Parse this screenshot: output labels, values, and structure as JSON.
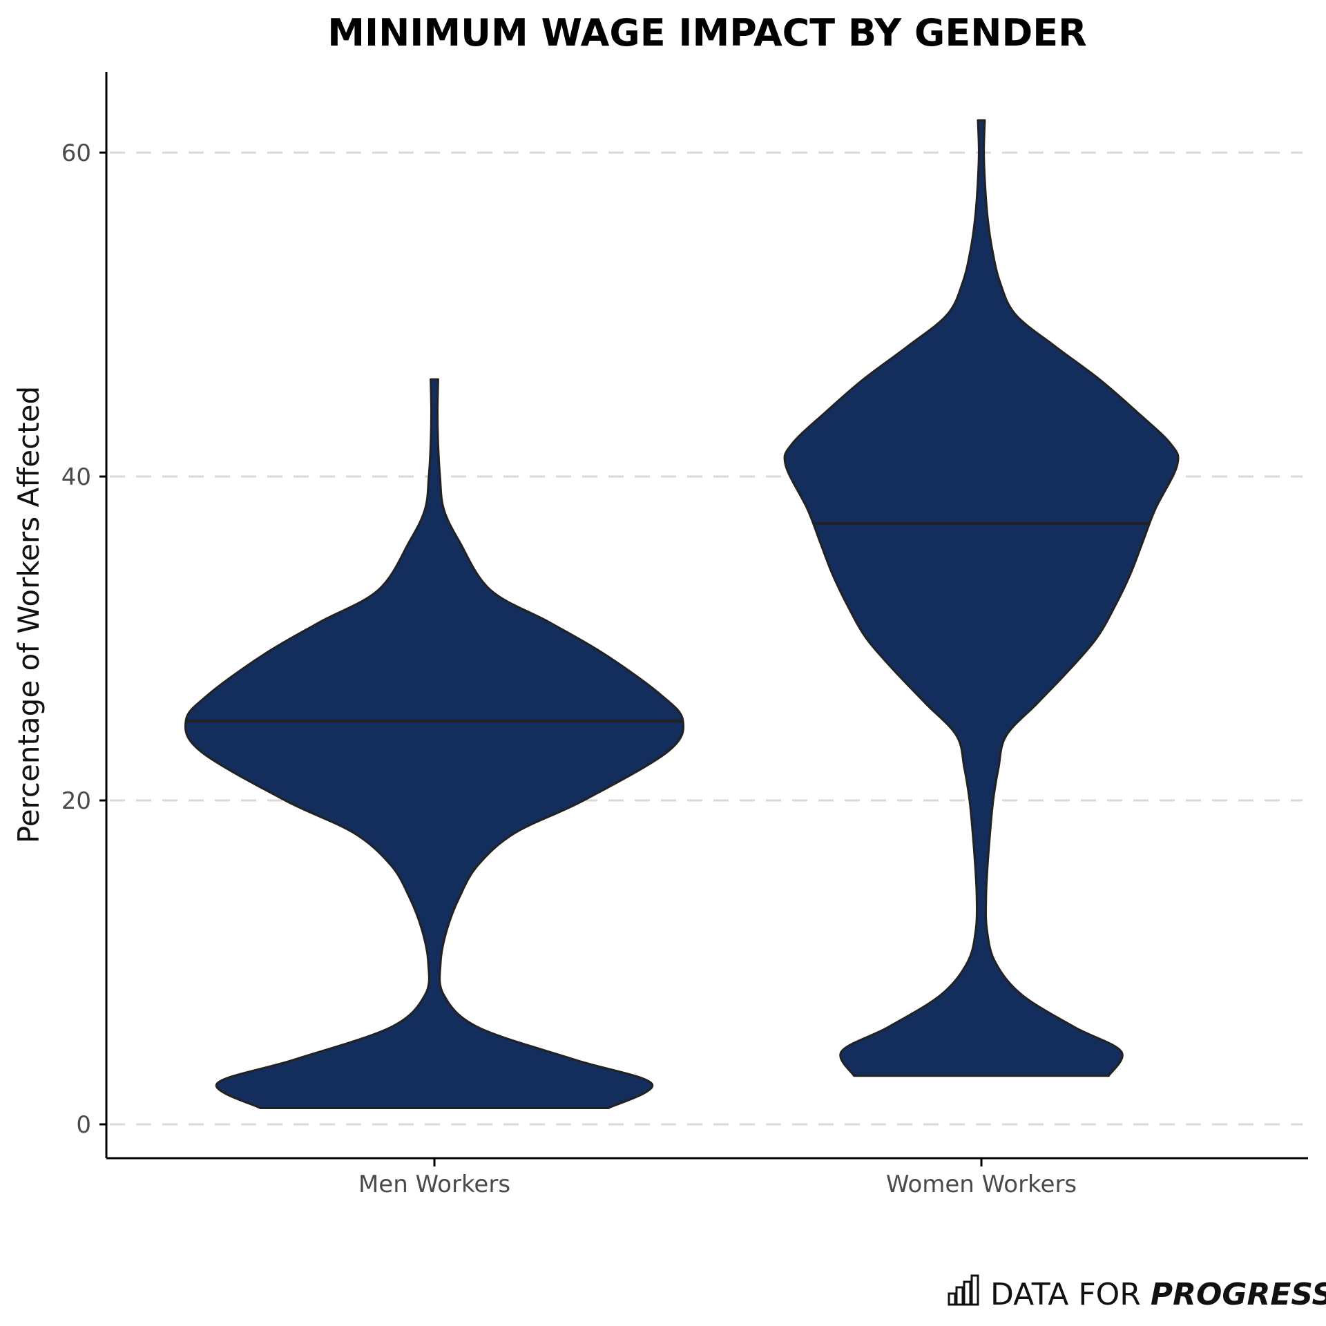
{
  "chart_data": {
    "type": "violin",
    "title": "MINIMUM WAGE IMPACT BY GENDER",
    "xlabel": "",
    "ylabel": "Percentage of Workers Affected",
    "ylim": [
      -2,
      65
    ],
    "yticks": [
      0,
      20,
      40,
      60
    ],
    "grid": "horizontal dashed",
    "legend": "none",
    "categories": [
      "Men Workers",
      "Women Workers"
    ],
    "fill_color": "#132d5c",
    "stroke_color": "#222222",
    "grid_color": "#d9d9d9",
    "series": [
      {
        "category": "Men Workers",
        "median": 24.9,
        "min": 1.0,
        "max": 46.0,
        "half_width_profile": [
          [
            1.0,
            0.56
          ],
          [
            2.5,
            0.7
          ],
          [
            4.0,
            0.45
          ],
          [
            6.0,
            0.14
          ],
          [
            8.0,
            0.03
          ],
          [
            10.0,
            0.02
          ],
          [
            12.0,
            0.04
          ],
          [
            14.0,
            0.08
          ],
          [
            16.0,
            0.14
          ],
          [
            18.0,
            0.26
          ],
          [
            20.0,
            0.48
          ],
          [
            23.0,
            0.75
          ],
          [
            24.9,
            0.8
          ],
          [
            26.5,
            0.73
          ],
          [
            29.0,
            0.55
          ],
          [
            31.0,
            0.37
          ],
          [
            33.0,
            0.18
          ],
          [
            36.0,
            0.08
          ],
          [
            38.0,
            0.03
          ],
          [
            40.0,
            0.018
          ],
          [
            42.0,
            0.012
          ],
          [
            44.0,
            0.01
          ],
          [
            46.0,
            0.012
          ]
        ]
      },
      {
        "category": "Women Workers",
        "median": 37.1,
        "min": 3.0,
        "max": 62.0,
        "half_width_profile": [
          [
            3.0,
            0.41
          ],
          [
            4.5,
            0.45
          ],
          [
            6.0,
            0.3
          ],
          [
            8.0,
            0.13
          ],
          [
            10.0,
            0.045
          ],
          [
            12.0,
            0.018
          ],
          [
            14.0,
            0.015
          ],
          [
            16.0,
            0.02
          ],
          [
            18.0,
            0.028
          ],
          [
            20.0,
            0.038
          ],
          [
            22.0,
            0.055
          ],
          [
            24.0,
            0.08
          ],
          [
            26.0,
            0.18
          ],
          [
            28.0,
            0.28
          ],
          [
            30.0,
            0.37
          ],
          [
            32.0,
            0.43
          ],
          [
            34.0,
            0.48
          ],
          [
            36.0,
            0.52
          ],
          [
            38.0,
            0.56
          ],
          [
            40.7,
            0.63
          ],
          [
            42.0,
            0.61
          ],
          [
            44.0,
            0.5
          ],
          [
            46.0,
            0.38
          ],
          [
            48.0,
            0.24
          ],
          [
            50.0,
            0.11
          ],
          [
            52.0,
            0.06
          ],
          [
            54.0,
            0.035
          ],
          [
            56.0,
            0.02
          ],
          [
            58.0,
            0.012
          ],
          [
            60.0,
            0.008
          ],
          [
            62.0,
            0.011
          ]
        ]
      }
    ]
  },
  "branding": {
    "logo_icon": "bar-chart-icon",
    "name_light": "DATA FOR ",
    "name_bold": "PROGRESS"
  }
}
